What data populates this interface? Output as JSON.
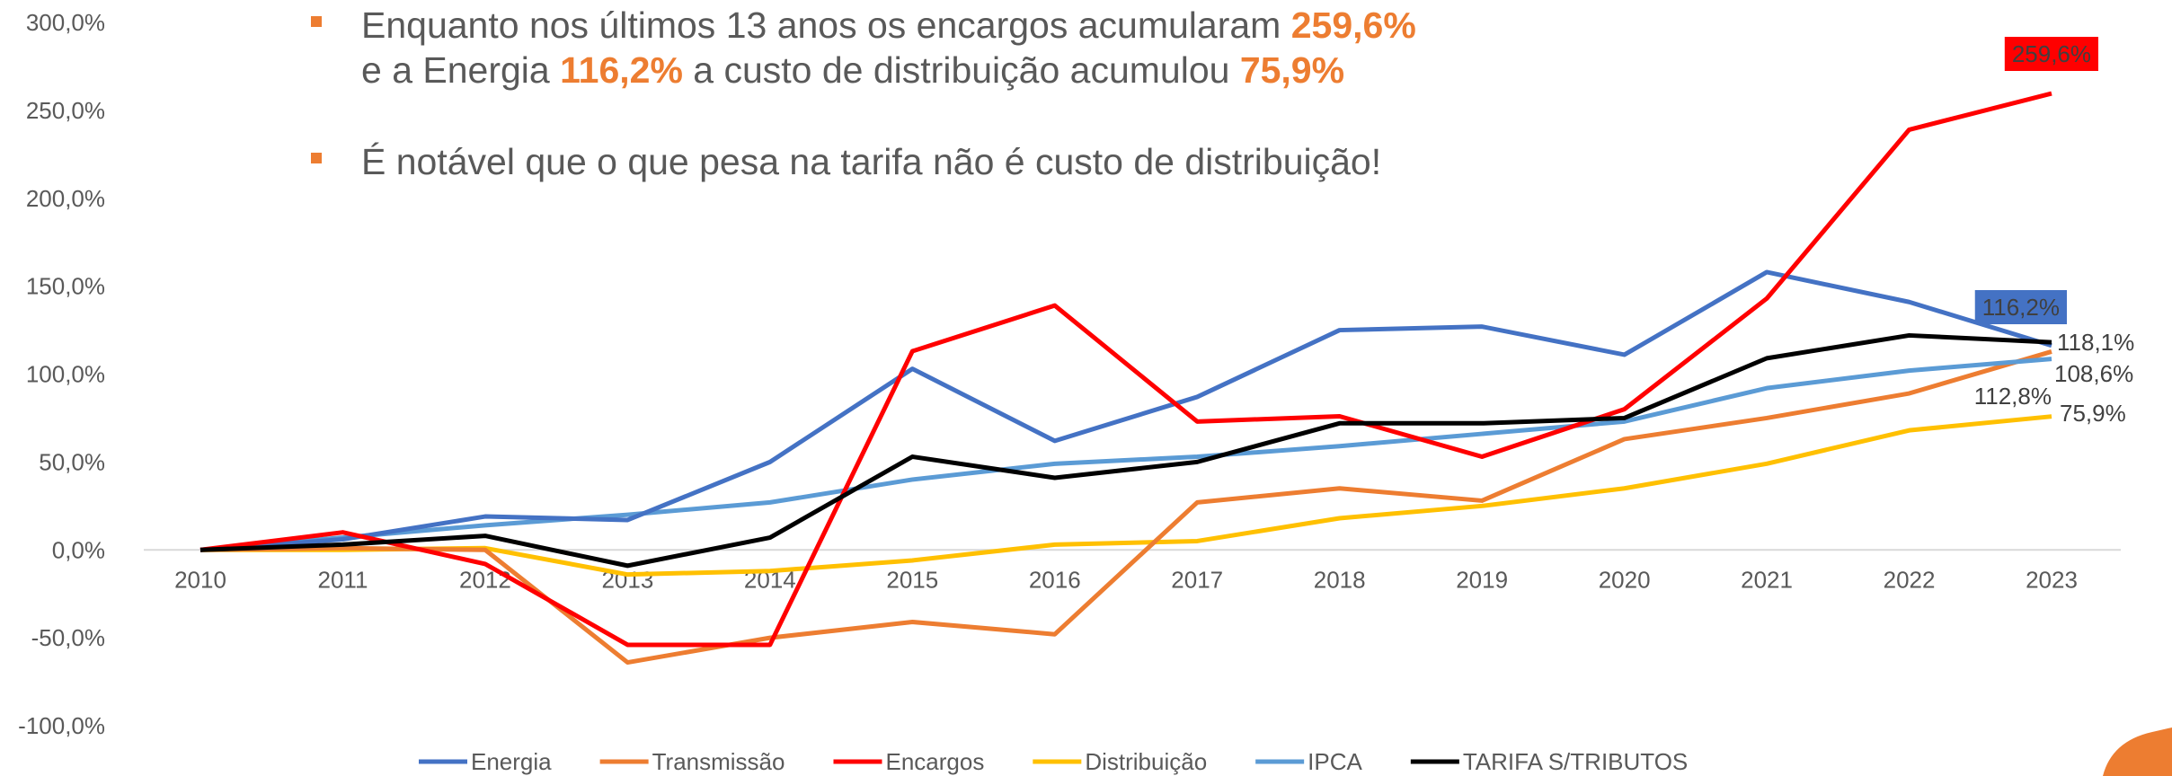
{
  "chart_data": {
    "type": "line",
    "notes": [
      [
        [
          {
            "text": "Enquanto nos últimos 13 anos os encargos acumularam "
          },
          {
            "text": "259,6%",
            "bold": true
          }
        ],
        [
          {
            "text": "e a Energia "
          },
          {
            "text": "116,2%",
            "bold": true
          },
          {
            "text": " a custo de distribuição acumulou "
          },
          {
            "text": "75,9%",
            "bold": true
          }
        ]
      ],
      [
        [
          {
            "text": "É notável que o que pesa na tarifa não é custo de distribuição!"
          }
        ]
      ]
    ],
    "categories": [
      "2010",
      "2011",
      "2012",
      "2013",
      "2014",
      "2015",
      "2016",
      "2017",
      "2018",
      "2019",
      "2020",
      "2021",
      "2022",
      "2023"
    ],
    "ylim": [
      -100,
      300
    ],
    "yticks": [
      {
        "value": -100,
        "label": "-100,0%"
      },
      {
        "value": -50,
        "label": "-50,0%"
      },
      {
        "value": 0,
        "label": "0,0%"
      },
      {
        "value": 50,
        "label": "50,0%"
      },
      {
        "value": 100,
        "label": "100,0%"
      },
      {
        "value": 150,
        "label": "150,0%"
      },
      {
        "value": 200,
        "label": "200,0%"
      },
      {
        "value": 250,
        "label": "250,0%"
      },
      {
        "value": 300,
        "label": "300,0%"
      }
    ],
    "grid": false,
    "legend": "bottom",
    "series": [
      {
        "name": "Energia",
        "color": "#4472c4",
        "values": [
          0,
          6,
          19,
          17,
          50,
          103,
          62,
          87,
          125,
          127,
          111,
          158,
          141,
          116.2
        ],
        "value_labels": [
          null,
          null,
          null,
          null,
          null,
          null,
          null,
          null,
          null,
          null,
          null,
          null,
          null,
          "116,2%"
        ]
      },
      {
        "name": "Transmissão",
        "color": "#ed7d31",
        "values": [
          0,
          1,
          0,
          -64,
          -50,
          -41,
          -48,
          27,
          35,
          28,
          63,
          75,
          89,
          112.8
        ],
        "value_labels": [
          null,
          null,
          null,
          null,
          null,
          null,
          null,
          null,
          null,
          null,
          null,
          null,
          null,
          "112,8%"
        ]
      },
      {
        "name": "Encargos",
        "color": "#ff0000",
        "values": [
          0,
          10,
          -8,
          -54,
          -54,
          113,
          139,
          73,
          76,
          53,
          80,
          143,
          239,
          259.6
        ],
        "value_labels": [
          null,
          null,
          null,
          null,
          null,
          null,
          null,
          null,
          null,
          null,
          null,
          null,
          null,
          "259,6%"
        ]
      },
      {
        "name": "Distribuição",
        "color": "#ffc000",
        "values": [
          0,
          0,
          1,
          -14,
          -12,
          -6,
          3,
          5,
          18,
          25,
          35,
          49,
          68,
          75.9
        ],
        "value_labels": [
          null,
          null,
          null,
          null,
          null,
          null,
          null,
          null,
          null,
          null,
          null,
          null,
          null,
          "75,9%"
        ]
      },
      {
        "name": "IPCA",
        "color": "#5b9bd5",
        "values": [
          0,
          7,
          14,
          20,
          27,
          40,
          49,
          53,
          59,
          66,
          73,
          92,
          102,
          108.6
        ],
        "value_labels": [
          null,
          null,
          null,
          null,
          null,
          null,
          null,
          null,
          null,
          null,
          null,
          null,
          null,
          "108,6%"
        ]
      },
      {
        "name": "TARIFA S/TRIBUTOS",
        "color": "#000000",
        "values": [
          0,
          3,
          8,
          -9,
          7,
          53,
          41,
          50,
          72,
          72,
          75,
          109,
          122,
          118.1
        ],
        "value_labels": [
          null,
          null,
          null,
          null,
          null,
          null,
          null,
          null,
          null,
          null,
          null,
          null,
          null,
          "118,1%"
        ]
      }
    ]
  }
}
